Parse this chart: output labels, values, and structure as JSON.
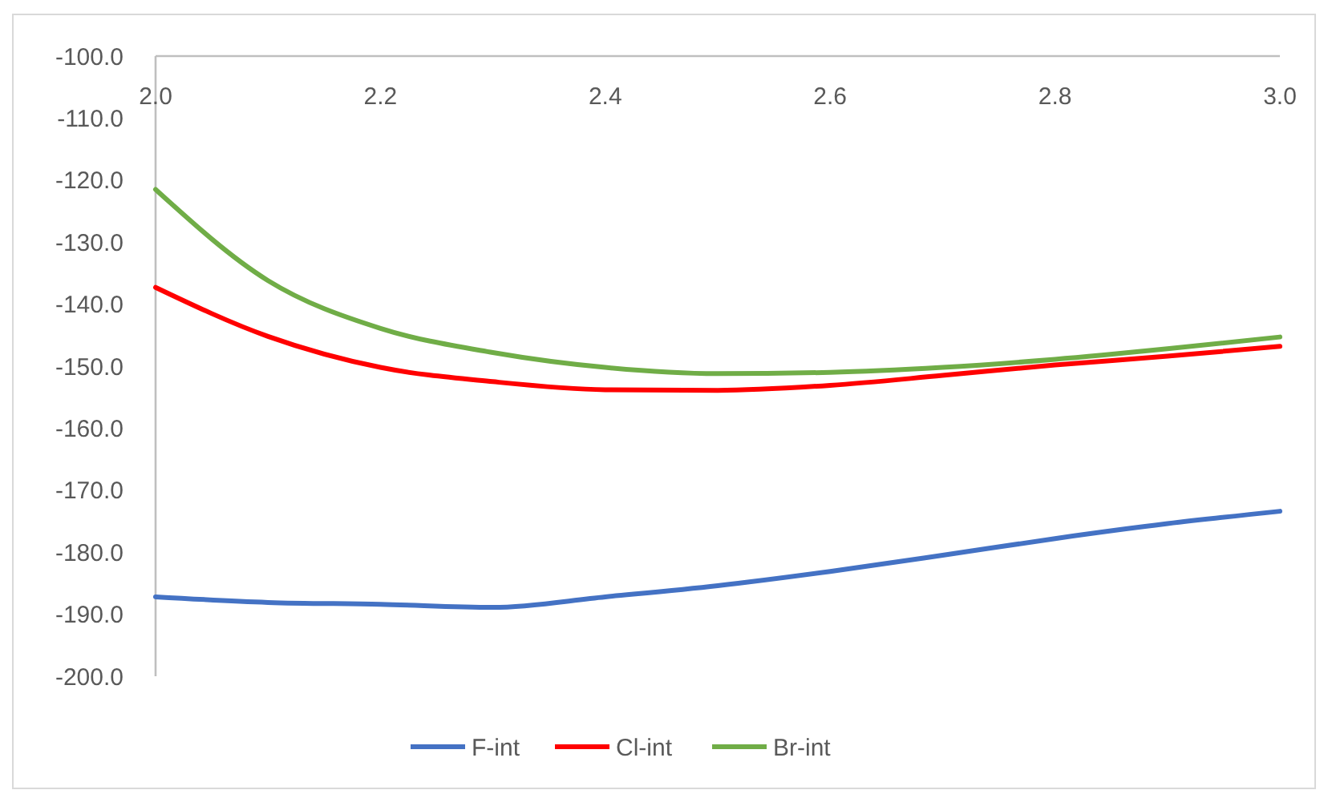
{
  "chart_data": {
    "type": "line",
    "x": [
      2.0,
      2.1,
      2.2,
      2.3,
      2.4,
      2.5,
      2.6,
      2.7,
      2.8,
      2.9,
      3.0
    ],
    "series": [
      {
        "name": "F-int",
        "color": "#4472c4",
        "values": [
          -187.2,
          -188.1,
          -188.4,
          -188.9,
          -187.2,
          -185.4,
          -183.1,
          -180.5,
          -177.8,
          -175.4,
          -173.4
        ]
      },
      {
        "name": "Cl-int",
        "color": "#ff0000",
        "values": [
          -137.3,
          -145.2,
          -150.2,
          -152.5,
          -153.8,
          -153.9,
          -153.1,
          -151.5,
          -149.8,
          -148.4,
          -146.8
        ]
      },
      {
        "name": "Br-int",
        "color": "#70ad47",
        "values": [
          -121.5,
          -136.2,
          -143.9,
          -147.8,
          -150.2,
          -151.2,
          -151.0,
          -150.2,
          -148.9,
          -147.2,
          -145.3
        ]
      }
    ],
    "xlim": [
      2.0,
      3.0
    ],
    "xticks": [
      {
        "value": 2.0,
        "label": "2.0"
      },
      {
        "value": 2.2,
        "label": "2.2"
      },
      {
        "value": 2.4,
        "label": "2.4"
      },
      {
        "value": 2.6,
        "label": "2.6"
      },
      {
        "value": 2.8,
        "label": "2.8"
      },
      {
        "value": 3.0,
        "label": "3.0"
      }
    ],
    "ylim": [
      -200,
      -100
    ],
    "yticks": [
      {
        "value": -200,
        "label": "-200.0"
      },
      {
        "value": -190,
        "label": "-190.0"
      },
      {
        "value": -180,
        "label": "-180.0"
      },
      {
        "value": -170,
        "label": "-170.0"
      },
      {
        "value": -160,
        "label": "-160.0"
      },
      {
        "value": -150,
        "label": "-150.0"
      },
      {
        "value": -140,
        "label": "-140.0"
      },
      {
        "value": -130,
        "label": "-130.0"
      },
      {
        "value": -120,
        "label": "-120.0"
      },
      {
        "value": -110,
        "label": "-110.0"
      },
      {
        "value": -100,
        "label": "-100.0"
      }
    ],
    "grid": false,
    "legend": "bottom",
    "marker": "none",
    "line_style": "solid"
  }
}
